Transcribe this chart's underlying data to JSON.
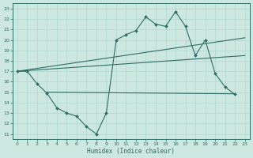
{
  "title": "",
  "xlabel": "Humidex (Indice chaleur)",
  "ylabel": "",
  "xlim": [
    -0.5,
    23.5
  ],
  "ylim": [
    10.5,
    23.5
  ],
  "yticks": [
    11,
    12,
    13,
    14,
    15,
    16,
    17,
    18,
    19,
    20,
    21,
    22,
    23
  ],
  "xticks": [
    0,
    1,
    2,
    3,
    4,
    5,
    6,
    7,
    8,
    9,
    10,
    11,
    12,
    13,
    14,
    15,
    16,
    17,
    18,
    19,
    20,
    21,
    22,
    23
  ],
  "bg_color": "#cce8e0",
  "line_color": "#2d6e65",
  "grid_color": "#b0d8cf",
  "main_line_x": [
    0,
    1,
    2,
    3,
    4,
    5,
    6,
    7,
    8,
    9,
    10,
    11,
    12,
    13,
    14,
    15,
    16,
    17,
    18,
    19,
    20,
    21,
    22
  ],
  "main_line_y": [
    17.0,
    17.0,
    15.8,
    14.9,
    13.5,
    13.0,
    12.7,
    11.7,
    11.0,
    13.0,
    20.0,
    20.5,
    20.9,
    22.2,
    21.5,
    21.3,
    22.7,
    21.3,
    18.5,
    20.0,
    16.8,
    15.5,
    14.8
  ],
  "line1": [
    [
      0,
      17.0
    ],
    [
      23,
      20.2
    ]
  ],
  "line2": [
    [
      0,
      17.0
    ],
    [
      23,
      18.5
    ]
  ],
  "flat_line": [
    [
      3,
      15.0
    ],
    [
      22,
      14.85
    ]
  ]
}
